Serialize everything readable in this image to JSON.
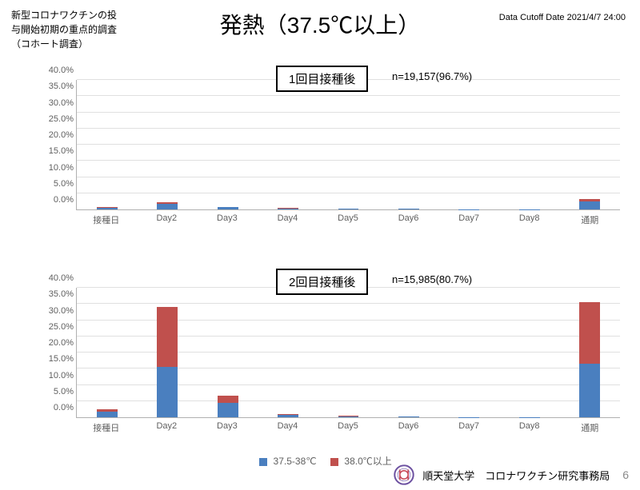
{
  "header_left": "新型コロナワクチンの投\n与開始初期の重点的調査\n（コホート調査）",
  "title": "発熱（37.5℃以上）",
  "cutoff": "Data Cutoff Date 2021/4/7 24:00",
  "colors": {
    "series_a": "#4a7fbf",
    "series_b": "#c0504d",
    "grid": "#e0e0e0",
    "axis": "#b0b0b0",
    "text": "#000000",
    "logo_ring": "#6b4fa0",
    "logo_fill": "#c84b5a"
  },
  "legend": {
    "a": "37.5-38℃",
    "b": "38.0℃以上"
  },
  "axis": {
    "ymax": 40,
    "yticks": [
      0,
      5,
      10,
      15,
      20,
      25,
      30,
      35,
      40
    ],
    "ylabels": [
      "0.0%",
      "5.0%",
      "10.0%",
      "15.0%",
      "20.0%",
      "25.0%",
      "30.0%",
      "35.0%",
      "40.0%"
    ],
    "categories": [
      "接種日",
      "Day2",
      "Day3",
      "Day4",
      "Day5",
      "Day6",
      "Day7",
      "Day8",
      "通期"
    ]
  },
  "charts": [
    {
      "panel_label": "1回目接種後",
      "n_label": "n=19,157(96.7%)",
      "bar_width_pct": 3.8,
      "series": [
        {
          "a": 0.6,
          "b": 0.1
        },
        {
          "a": 1.8,
          "b": 0.4
        },
        {
          "a": 0.7,
          "b": 0.1
        },
        {
          "a": 0.3,
          "b": 0.1
        },
        {
          "a": 0.2,
          "b": 0.0
        },
        {
          "a": 0.2,
          "b": 0.1
        },
        {
          "a": 0.1,
          "b": 0.0
        },
        {
          "a": 0.1,
          "b": 0.0
        },
        {
          "a": 2.5,
          "b": 0.6
        }
      ]
    },
    {
      "panel_label": "2回目接種後",
      "n_label": "n=15,985(80.7%)",
      "bar_width_pct": 3.8,
      "series": [
        {
          "a": 1.8,
          "b": 0.6
        },
        {
          "a": 15.5,
          "b": 18.5
        },
        {
          "a": 4.5,
          "b": 2.2
        },
        {
          "a": 0.8,
          "b": 0.2
        },
        {
          "a": 0.3,
          "b": 0.1
        },
        {
          "a": 0.2,
          "b": 0.1
        },
        {
          "a": 0.1,
          "b": 0.0
        },
        {
          "a": 0.1,
          "b": 0.0
        },
        {
          "a": 16.5,
          "b": 19.0
        }
      ]
    }
  ],
  "footer": {
    "org": "順天堂大学　コロナワクチン研究事務局",
    "page": "6"
  }
}
